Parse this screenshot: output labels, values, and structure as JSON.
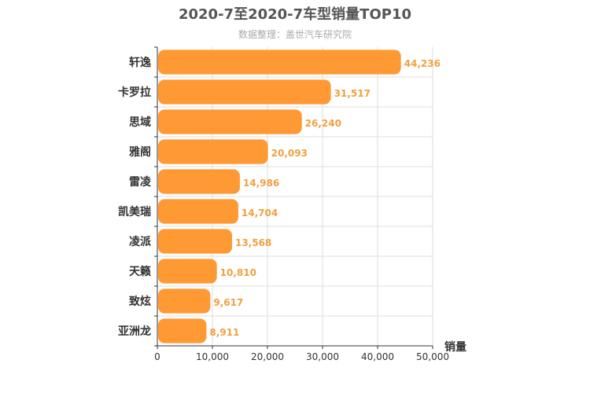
{
  "chart_data": {
    "type": "bar",
    "orientation": "horizontal",
    "title": "2020-7至2020-7车型销量TOP10",
    "subtitle": "数据整理：盖世汽车研究院",
    "xlabel": "销量",
    "categories": [
      "轩逸",
      "卡罗拉",
      "思域",
      "雅阁",
      "雷凌",
      "凯美瑞",
      "凌派",
      "天籁",
      "致炫",
      "亚洲龙"
    ],
    "values": [
      44236,
      31517,
      26240,
      20093,
      14986,
      14704,
      13568,
      10810,
      9617,
      8911
    ],
    "value_labels": [
      "44,236",
      "31,517",
      "26,240",
      "20,093",
      "14,986",
      "14,704",
      "13,568",
      "10,810",
      "9,617",
      "8,911"
    ],
    "xlim": [
      0,
      50000
    ],
    "ticks": [
      0,
      10000,
      20000,
      30000,
      40000,
      50000
    ],
    "tick_labels": [
      "0",
      "10,000",
      "20,000",
      "30,000",
      "40,000",
      "50,000"
    ],
    "grid": true,
    "colors": {
      "bar": "#ff9933",
      "value_label": "#f0a040",
      "grid": "#dddddd",
      "title": "#555555",
      "subtitle": "#aaaaaa"
    }
  }
}
